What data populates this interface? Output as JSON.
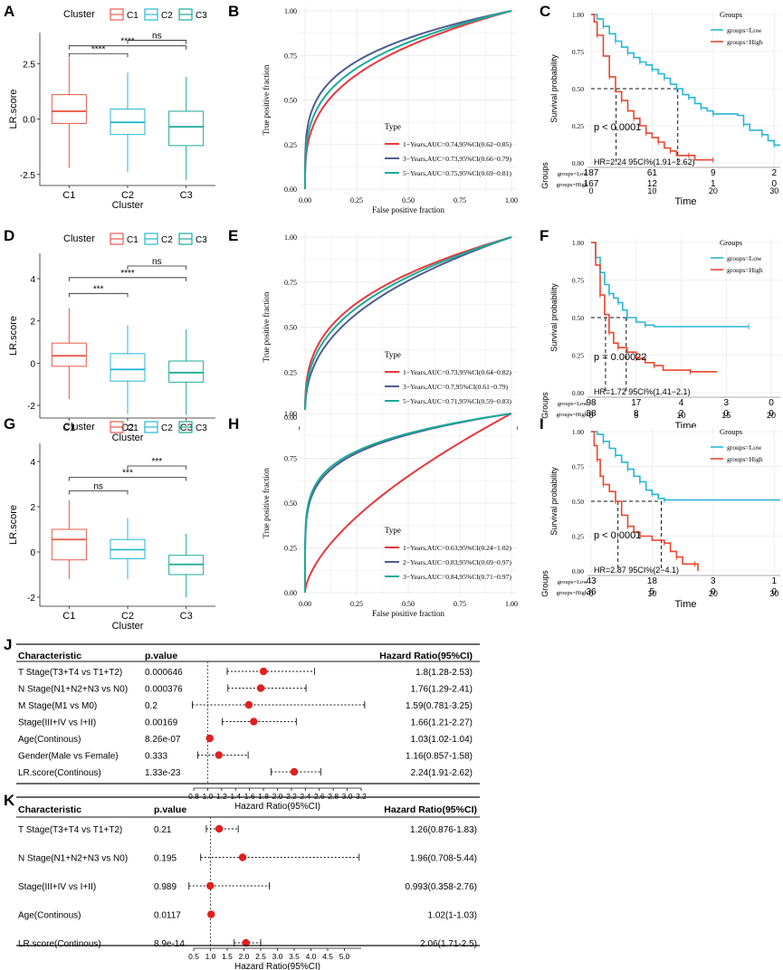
{
  "figure": {
    "panel_letters": {
      "A": "A",
      "B": "B",
      "C": "C",
      "D": "D",
      "E": "E",
      "F": "F",
      "G": "G",
      "H": "H",
      "I": "I",
      "J": "J",
      "K": "K"
    }
  },
  "colors": {
    "c1": "#E8594A",
    "c2": "#26B7D3",
    "c3": "#1BAA98",
    "roc1": "#E8383D",
    "roc2": "#4E5D91",
    "roc3": "#1BAA98",
    "km_low": "#26B7D3",
    "km_high": "#E8472F",
    "grid": "#EBEBEB",
    "forest_dot": "#E02020"
  },
  "chart_data": [
    {
      "id": "A",
      "type": "box",
      "legend_title": "Cluster",
      "legend": [
        "C1",
        "C2",
        "C3"
      ],
      "xlabel": "Cluster",
      "ylabel": "LR.score",
      "categories": [
        "C1",
        "C2",
        "C3"
      ],
      "ylim": [
        -3.0,
        3.9
      ],
      "yticks": [
        -2.5,
        0.0,
        2.5
      ],
      "ytick_labels": [
        "-2.5",
        "0.0",
        "2.5"
      ],
      "boxes": [
        {
          "q1": -0.2,
          "median": 0.35,
          "q3": 1.1,
          "lo": -2.2,
          "hi": 2.75
        },
        {
          "q1": -0.7,
          "median": -0.15,
          "q3": 0.45,
          "lo": -2.4,
          "hi": 2.1
        },
        {
          "q1": -1.2,
          "median": -0.35,
          "q3": 0.35,
          "lo": -2.75,
          "hi": 1.9
        }
      ],
      "brackets": [
        {
          "from": 0,
          "to": 1,
          "y": 2.95,
          "label": "****"
        },
        {
          "from": 0,
          "to": 2,
          "y": 3.3,
          "label": "****"
        },
        {
          "from": 1,
          "to": 2,
          "y": 3.55,
          "label": "ns"
        }
      ]
    },
    {
      "id": "D",
      "type": "box",
      "legend_title": "Cluster",
      "legend": [
        "C1",
        "C2",
        "C3"
      ],
      "xlabel": "Cluster",
      "ylabel": "LR.score",
      "categories": [
        "C1",
        "C2",
        "C3"
      ],
      "ylim": [
        -2.6,
        5.2
      ],
      "yticks": [
        -2,
        0,
        2,
        4
      ],
      "ytick_labels": [
        "-2",
        "0",
        "2",
        "4"
      ],
      "boxes": [
        {
          "q1": -0.15,
          "median": 0.35,
          "q3": 0.95,
          "lo": -1.7,
          "hi": 2.6
        },
        {
          "q1": -0.85,
          "median": -0.3,
          "q3": 0.45,
          "lo": -2.4,
          "hi": 1.8
        },
        {
          "q1": -0.9,
          "median": -0.45,
          "q3": 0.1,
          "lo": -2.45,
          "hi": 1.6
        }
      ],
      "brackets": [
        {
          "from": 0,
          "to": 1,
          "y": 3.3,
          "label": "***"
        },
        {
          "from": 0,
          "to": 2,
          "y": 4.05,
          "label": "****"
        },
        {
          "from": 1,
          "to": 2,
          "y": 4.6,
          "label": "ns"
        }
      ]
    },
    {
      "id": "G",
      "type": "box",
      "legend_title": "Cluster",
      "legend": [
        "C1",
        "C2",
        "C3"
      ],
      "xlabel": "Cluster",
      "ylabel": "LR.score",
      "categories": [
        "C1",
        "C2",
        "C3"
      ],
      "ylim": [
        -2.4,
        4.8
      ],
      "yticks": [
        -2,
        0,
        2,
        4
      ],
      "ytick_labels": [
        "-2",
        "0",
        "2",
        "4"
      ],
      "boxes": [
        {
          "q1": -0.35,
          "median": 0.55,
          "q3": 1.0,
          "lo": -1.2,
          "hi": 2.3
        },
        {
          "q1": -0.3,
          "median": 0.1,
          "q3": 0.55,
          "lo": -1.2,
          "hi": 1.5
        },
        {
          "q1": -1.0,
          "median": -0.55,
          "q3": -0.15,
          "lo": -2.0,
          "hi": 0.8
        }
      ],
      "brackets": [
        {
          "from": 0,
          "to": 1,
          "y": 2.7,
          "label": "ns"
        },
        {
          "from": 0,
          "to": 2,
          "y": 3.3,
          "label": "***"
        },
        {
          "from": 1,
          "to": 2,
          "y": 3.8,
          "label": "***"
        }
      ]
    },
    {
      "id": "B",
      "type": "roc",
      "xlabel": "False positive fraction",
      "ylabel": "True positive fraction",
      "ticks": [
        "0.00",
        "0.25",
        "0.50",
        "0.75",
        "1.00"
      ],
      "legend_title": "Type",
      "series": [
        {
          "name": "1−Years,AUC=0.74,95%CI(0.62−0.85)",
          "k": 0.32,
          "color": "roc1"
        },
        {
          "name": "3−Years,AUC=0.73,95%CI(0.66−0.79)",
          "k": 0.24,
          "color": "roc2"
        },
        {
          "name": "5−Years,AUC=0.75,95%CI(0.69−0.81)",
          "k": 0.28,
          "color": "roc3"
        }
      ]
    },
    {
      "id": "E",
      "type": "roc",
      "xlabel": "False positive fraction",
      "ylabel": "True positive fraction",
      "ticks": [
        "0.00",
        "0.25",
        "0.50",
        "0.75",
        "1.00"
      ],
      "legend_title": "Type",
      "series": [
        {
          "name": "1−Years,AUC=0.73,95%CI(0.64−0.82)",
          "k": 0.33,
          "color": "roc1"
        },
        {
          "name": "3−Years,AUC=0.7,95%CI(0.61−0.79)",
          "k": 0.4,
          "color": "roc2"
        },
        {
          "name": "5−Years,AUC=0.71,95%CI(0.59−0.83)",
          "k": 0.36,
          "color": "roc3"
        }
      ]
    },
    {
      "id": "H",
      "type": "roc",
      "xlabel": "False positive fraction",
      "ylabel": "True positive fraction",
      "ticks": [
        "0.00",
        "0.25",
        "0.50",
        "0.75",
        "1.00"
      ],
      "legend_title": "Type",
      "series": [
        {
          "name": "1−Years,AUC=0.63,95%CI(0.24−1.02)",
          "k": 0.62,
          "color": "roc1"
        },
        {
          "name": "2−Years,AUC=0.83,95%CI(0.69−0.97)",
          "k": 0.18,
          "color": "roc2"
        },
        {
          "name": "3−Years,AUC=0.84,95%CI(0.71−0.97)",
          "k": 0.17,
          "color": "roc3"
        }
      ]
    },
    {
      "id": "C",
      "type": "km",
      "xlabel": "Time",
      "ylabel": "Survival probability",
      "xmax": 31,
      "xticks": [
        0,
        10,
        20,
        30
      ],
      "yticks": [
        "0.00",
        "0.25",
        "0.50",
        "0.75",
        "1.00"
      ],
      "legend_title": "Groups",
      "legend": [
        "groups=Low",
        "groups=High"
      ],
      "pvalue": "p < 0.0001",
      "hr": "HR=2.24 95CI%(1.91−2.62)",
      "median_low": 14.2,
      "median_high": 4.1,
      "low": [
        [
          0,
          1
        ],
        [
          1,
          0.97
        ],
        [
          2,
          0.92
        ],
        [
          3,
          0.87
        ],
        [
          4,
          0.82
        ],
        [
          5,
          0.78
        ],
        [
          6,
          0.74
        ],
        [
          7,
          0.71
        ],
        [
          8,
          0.68
        ],
        [
          9,
          0.66
        ],
        [
          10,
          0.63
        ],
        [
          11,
          0.6
        ],
        [
          12,
          0.57
        ],
        [
          13,
          0.53
        ],
        [
          14,
          0.5
        ],
        [
          15,
          0.46
        ],
        [
          16,
          0.44
        ],
        [
          17,
          0.4
        ],
        [
          18,
          0.37
        ],
        [
          19,
          0.35
        ],
        [
          20,
          0.33
        ],
        [
          24,
          0.32
        ],
        [
          25,
          0.26
        ],
        [
          26,
          0.22
        ],
        [
          28,
          0.19
        ],
        [
          29,
          0.15
        ],
        [
          30,
          0.12
        ],
        [
          31,
          0.12
        ]
      ],
      "high": [
        [
          0,
          1
        ],
        [
          0.5,
          0.95
        ],
        [
          1,
          0.86
        ],
        [
          2,
          0.72
        ],
        [
          3,
          0.58
        ],
        [
          4,
          0.48
        ],
        [
          5,
          0.42
        ],
        [
          6,
          0.35
        ],
        [
          7,
          0.3
        ],
        [
          8,
          0.25
        ],
        [
          9,
          0.2
        ],
        [
          10,
          0.17
        ],
        [
          11,
          0.14
        ],
        [
          12,
          0.1
        ],
        [
          13,
          0.08
        ],
        [
          14,
          0.05
        ],
        [
          16,
          0.05
        ],
        [
          17,
          0.02
        ],
        [
          20,
          0.02
        ]
      ],
      "risk_label": "Groups",
      "risk_rows": [
        {
          "label": "groups=Low",
          "values": [
            "187",
            "61",
            "9",
            "2"
          ]
        },
        {
          "label": "groups=High",
          "values": [
            "167",
            "12",
            "1",
            "0"
          ]
        }
      ]
    },
    {
      "id": "F",
      "type": "km",
      "xlabel": "Time",
      "ylabel": "Survival probability",
      "xmax": 21,
      "xticks": [
        0,
        5,
        10,
        15,
        20
      ],
      "yticks": [
        "0.00",
        "0.25",
        "0.50",
        "0.75",
        "1.00"
      ],
      "legend_title": "Groups",
      "legend": [
        "groups=Low",
        "groups=High"
      ],
      "pvalue": "p = 0.00022",
      "hr": "HR=1.72 95CI%(1.41−2.1)",
      "median_low": 3.9,
      "median_high": 1.6,
      "low": [
        [
          0,
          1
        ],
        [
          0.5,
          0.9
        ],
        [
          1,
          0.8
        ],
        [
          1.5,
          0.72
        ],
        [
          2,
          0.66
        ],
        [
          2.5,
          0.63
        ],
        [
          3,
          0.6
        ],
        [
          3.5,
          0.55
        ],
        [
          4,
          0.5
        ],
        [
          5,
          0.47
        ],
        [
          6,
          0.45
        ],
        [
          7,
          0.44
        ],
        [
          17.5,
          0.44
        ]
      ],
      "high": [
        [
          0,
          1
        ],
        [
          0.5,
          0.85
        ],
        [
          1,
          0.65
        ],
        [
          1.5,
          0.52
        ],
        [
          2,
          0.4
        ],
        [
          2.5,
          0.33
        ],
        [
          3,
          0.3
        ],
        [
          4,
          0.27
        ],
        [
          5,
          0.23
        ],
        [
          6,
          0.2
        ],
        [
          7,
          0.18
        ],
        [
          8,
          0.15
        ],
        [
          11,
          0.14
        ],
        [
          14,
          0.14
        ]
      ],
      "risk_label": "Groups",
      "risk_rows": [
        {
          "label": "groups=Low",
          "values": [
            "98",
            "17",
            "4",
            "3",
            "0"
          ]
        },
        {
          "label": "groups=High",
          "values": [
            "88",
            "8",
            "2",
            "0",
            "0"
          ]
        }
      ]
    },
    {
      "id": "I",
      "type": "km",
      "xlabel": "Time",
      "ylabel": "Survival probability",
      "xmax": 31,
      "xticks": [
        0,
        10,
        20,
        30
      ],
      "yticks": [
        "0.00",
        "0.25",
        "0.50",
        "0.75",
        "1.00"
      ],
      "legend_title": "Groups",
      "legend": [
        "groups=Low",
        "groups=High"
      ],
      "pvalue": "p < 0.0001",
      "hr": "HR=2.87 95CI%(2−4.1)",
      "median_low": 11.5,
      "median_high": 4.4,
      "low": [
        [
          0,
          1
        ],
        [
          1,
          0.98
        ],
        [
          2,
          0.93
        ],
        [
          3,
          0.88
        ],
        [
          4,
          0.83
        ],
        [
          5,
          0.78
        ],
        [
          6,
          0.73
        ],
        [
          7,
          0.68
        ],
        [
          8,
          0.64
        ],
        [
          9,
          0.58
        ],
        [
          10,
          0.55
        ],
        [
          11,
          0.52
        ],
        [
          12,
          0.51
        ],
        [
          31,
          0.51
        ]
      ],
      "high": [
        [
          0,
          1
        ],
        [
          0.5,
          0.9
        ],
        [
          1,
          0.8
        ],
        [
          1.5,
          0.68
        ],
        [
          2,
          0.62
        ],
        [
          3,
          0.57
        ],
        [
          4,
          0.5
        ],
        [
          5,
          0.4
        ],
        [
          6,
          0.32
        ],
        [
          7,
          0.28
        ],
        [
          8,
          0.25
        ],
        [
          10,
          0.22
        ],
        [
          12,
          0.2
        ],
        [
          13,
          0.14
        ],
        [
          14,
          0.1
        ],
        [
          15,
          0.05
        ],
        [
          17,
          0.05
        ],
        [
          17.5,
          0.0
        ]
      ],
      "risk_label": "Groups",
      "risk_rows": [
        {
          "label": "groups=Low",
          "values": [
            "43",
            "18",
            "3",
            "1"
          ]
        },
        {
          "label": "groups=High",
          "values": [
            "36",
            "5",
            "0",
            "0"
          ]
        }
      ]
    },
    {
      "id": "J",
      "type": "forest",
      "headers": [
        "Characteristic",
        "p.value",
        "Hazard Ratio(95%CI)"
      ],
      "xlabel": "Hazard Ratio(95%CI)",
      "xmin": 0.8,
      "xmax": 3.2,
      "xticks": [
        "0.8",
        "1.0",
        "1.2",
        "1.4",
        "1.6",
        "1.8",
        "2.0",
        "2.2",
        "2.4",
        "2.6",
        "2.8",
        "3.0",
        "3.2"
      ],
      "rows": [
        {
          "name": "T Stage(T3+T4 vs T1+T2)",
          "p": "0.000646",
          "hr": 1.8,
          "lo": 1.28,
          "hi": 2.53,
          "text": "1.8(1.28-2.53)"
        },
        {
          "name": "N Stage(N1+N2+N3 vs N0)",
          "p": "0.000376",
          "hr": 1.76,
          "lo": 1.29,
          "hi": 2.41,
          "text": "1.76(1.29-2.41)"
        },
        {
          "name": "M Stage(M1 vs M0)",
          "p": "0.2",
          "hr": 1.59,
          "lo": 0.781,
          "hi": 3.25,
          "text": "1.59(0.781-3.25)"
        },
        {
          "name": "Stage(III+IV vs I+II)",
          "p": "0.00169",
          "hr": 1.66,
          "lo": 1.21,
          "hi": 2.27,
          "text": "1.66(1.21-2.27)"
        },
        {
          "name": "Age(Continous)",
          "p": "8.26e-07",
          "hr": 1.03,
          "lo": 1.02,
          "hi": 1.04,
          "text": "1.03(1.02-1.04)"
        },
        {
          "name": "Gender(Male vs Female)",
          "p": "0.333",
          "hr": 1.16,
          "lo": 0.857,
          "hi": 1.58,
          "text": "1.16(0.857-1.58)"
        },
        {
          "name": "LR.score(Continous)",
          "p": "1.33e-23",
          "hr": 2.24,
          "lo": 1.91,
          "hi": 2.62,
          "text": "2.24(1.91-2.62)"
        }
      ]
    },
    {
      "id": "K",
      "type": "forest",
      "headers": [
        "Characteristic",
        "p.value",
        "Hazard Ratio(95%CI)"
      ],
      "xlabel": "Hazard Ratio(95%CI)",
      "xmin": 0.5,
      "xmax": 5.5,
      "xticks": [
        "0.5",
        "1.0",
        "1.5",
        "2.0",
        "2.5",
        "3.0",
        "3.5",
        "4.0",
        "4.5",
        "5.0"
      ],
      "rows": [
        {
          "name": "T Stage(T3+T4 vs T1+T2)",
          "p": "0.21",
          "hr": 1.26,
          "lo": 0.876,
          "hi": 1.83,
          "text": "1.26(0.876-1.83)"
        },
        {
          "name": "N Stage(N1+N2+N3 vs N0)",
          "p": "0.195",
          "hr": 1.96,
          "lo": 0.708,
          "hi": 5.44,
          "text": "1.96(0.708-5.44)"
        },
        {
          "name": "Stage(III+IV vs I+II)",
          "p": "0.989",
          "hr": 0.993,
          "lo": 0.358,
          "hi": 2.76,
          "text": "0.993(0.358-2.76)"
        },
        {
          "name": "Age(Continous)",
          "p": "0.0117",
          "hr": 1.02,
          "lo": 1.0,
          "hi": 1.03,
          "text": "1.02(1-1.03)"
        },
        {
          "name": "LR.score(Continous)",
          "p": "8.9e-14",
          "hr": 2.06,
          "lo": 1.71,
          "hi": 2.5,
          "text": "2.06(1.71-2.5)"
        }
      ]
    }
  ]
}
